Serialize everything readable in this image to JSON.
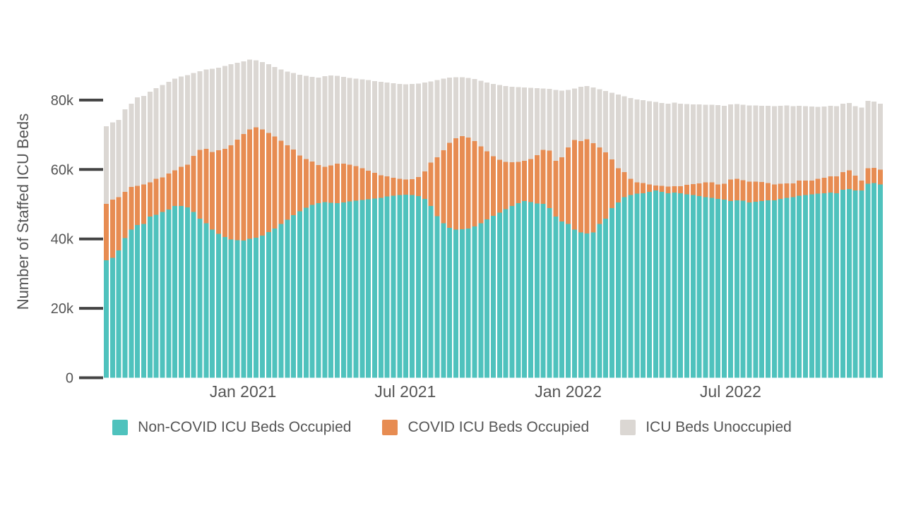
{
  "chart_data": {
    "type": "bar",
    "stacked": true,
    "title": "",
    "xlabel": "",
    "ylabel": "Number of Staffed ICU Beds",
    "unit": "thousands of staffed ICU beds",
    "bar_count": 125,
    "x_frequency": "weekly",
    "grid": false,
    "legend_position": "bottom",
    "ylim_k": [
      0,
      92
    ],
    "y_ticks": [
      {
        "value": 0,
        "label": "0"
      },
      {
        "value": 20,
        "label": "20k"
      },
      {
        "value": 40,
        "label": "40k"
      },
      {
        "value": 60,
        "label": "60k"
      },
      {
        "value": 80,
        "label": "80k"
      }
    ],
    "x_ticks": [
      {
        "label": "Jan 2021",
        "bar_index": 21.9
      },
      {
        "label": "Jul 2021",
        "bar_index": 47.9
      },
      {
        "label": "Jan 2022",
        "bar_index": 74.0
      },
      {
        "label": "Jul 2022",
        "bar_index": 100.0
      }
    ],
    "axis_colors": {
      "tick_dash": "#444444",
      "tick_label": "#555555",
      "axis_title": "#555555"
    },
    "series": [
      {
        "name": "Non-COVID ICU Beds Occupied",
        "color": "#4FC2BD",
        "values_k": [
          33.8,
          34.6,
          36.7,
          40.2,
          42.7,
          44.0,
          44.3,
          46.4,
          47.0,
          47.8,
          48.5,
          49.5,
          49.5,
          49.1,
          47.8,
          45.8,
          44.5,
          42.7,
          41.5,
          40.5,
          39.8,
          39.6,
          39.5,
          40.0,
          40.3,
          41.0,
          42.0,
          43.0,
          44.3,
          45.5,
          46.8,
          48.0,
          49.0,
          49.8,
          50.3,
          50.6,
          50.4,
          50.3,
          50.5,
          50.8,
          51.0,
          51.2,
          51.4,
          51.6,
          51.8,
          52.2,
          52.4,
          52.6,
          52.7,
          52.6,
          52.3,
          51.5,
          49.5,
          46.5,
          44.5,
          43.2,
          42.7,
          42.8,
          43.0,
          43.6,
          44.5,
          45.6,
          46.6,
          47.6,
          48.6,
          49.5,
          50.3,
          50.9,
          50.6,
          50.2,
          50.1,
          48.9,
          46.4,
          45.0,
          44.3,
          42.7,
          41.9,
          41.6,
          41.9,
          44.3,
          45.8,
          48.9,
          50.5,
          52.0,
          52.6,
          53.0,
          53.2,
          53.6,
          54.0,
          53.6,
          53.2,
          53.4,
          53.2,
          52.8,
          52.6,
          52.3,
          52.0,
          51.8,
          51.5,
          51.3,
          50.9,
          51.1,
          51.0,
          50.5,
          50.7,
          50.9,
          51.1,
          51.1,
          51.5,
          51.8,
          52.0,
          52.4,
          52.6,
          52.8,
          53.0,
          53.2,
          53.4,
          53.2,
          54.2,
          54.4,
          54.0,
          54.0,
          55.9,
          56.1,
          55.7
        ]
      },
      {
        "name": "COVID ICU Beds Occupied",
        "color": "#E78C52",
        "values_k": [
          16.3,
          16.7,
          15.3,
          13.4,
          12.3,
          11.3,
          11.4,
          9.9,
          10.3,
          9.9,
          10.3,
          10.3,
          11.3,
          12.3,
          16.1,
          19.8,
          21.5,
          22.3,
          24.0,
          25.5,
          27.2,
          29.0,
          30.7,
          31.5,
          31.9,
          30.5,
          28.5,
          26.5,
          24.0,
          21.5,
          19.0,
          16.0,
          14.0,
          12.5,
          11.0,
          10.2,
          10.8,
          11.4,
          11.2,
          10.6,
          10.0,
          9.2,
          8.3,
          7.4,
          6.5,
          5.8,
          5.2,
          4.7,
          4.4,
          4.6,
          5.5,
          8.0,
          12.5,
          17.0,
          21.0,
          24.5,
          26.3,
          26.8,
          26.2,
          24.6,
          22.2,
          19.6,
          17.2,
          15.2,
          13.6,
          12.6,
          11.9,
          11.6,
          12.4,
          13.9,
          15.5,
          16.5,
          16.1,
          18.5,
          22.1,
          25.8,
          26.3,
          27.1,
          25.7,
          22.1,
          19.1,
          14.0,
          9.9,
          7.2,
          4.7,
          3.3,
          2.9,
          2.1,
          1.4,
          1.7,
          1.9,
          1.8,
          2.0,
          2.8,
          3.2,
          3.7,
          4.3,
          4.5,
          4.2,
          4.6,
          6.2,
          6.2,
          5.9,
          6.0,
          5.8,
          5.5,
          5.0,
          4.6,
          4.4,
          4.2,
          4.0,
          4.4,
          4.2,
          4.0,
          4.3,
          4.4,
          4.6,
          4.8,
          5.0,
          5.4,
          4.2,
          2.8,
          4.5,
          4.4,
          4.3
        ]
      },
      {
        "name": "ICU Beds Unoccupied",
        "color": "#DBD7D3",
        "values_k": [
          22.4,
          22.3,
          22.3,
          23.7,
          24.0,
          25.5,
          25.5,
          26.1,
          26.1,
          26.7,
          26.5,
          26.4,
          26.0,
          25.8,
          23.9,
          22.7,
          22.8,
          24.0,
          23.8,
          23.8,
          23.3,
          22.2,
          21.0,
          20.2,
          19.3,
          19.5,
          19.8,
          20.0,
          20.5,
          21.2,
          22.0,
          23.3,
          24.0,
          24.4,
          25.2,
          26.1,
          25.9,
          25.3,
          25.0,
          25.0,
          25.2,
          25.6,
          26.1,
          26.5,
          27.0,
          27.1,
          27.3,
          27.4,
          27.5,
          27.5,
          27.0,
          25.6,
          23.4,
          22.3,
          20.7,
          18.8,
          17.6,
          17.0,
          17.2,
          17.9,
          18.9,
          19.9,
          20.9,
          21.5,
          21.8,
          21.7,
          21.5,
          21.1,
          20.5,
          19.3,
          17.7,
          17.8,
          20.4,
          19.2,
          16.5,
          14.8,
          15.6,
          15.3,
          16.0,
          16.7,
          17.7,
          19.2,
          21.2,
          21.9,
          23.3,
          23.9,
          23.9,
          24.0,
          24.1,
          23.9,
          23.9,
          24.1,
          23.8,
          23.3,
          23.0,
          22.8,
          22.4,
          22.4,
          22.9,
          22.5,
          21.7,
          21.6,
          21.8,
          22.0,
          22.0,
          22.0,
          22.3,
          22.6,
          22.5,
          22.5,
          22.3,
          21.6,
          21.5,
          21.4,
          20.7,
          20.6,
          20.4,
          20.3,
          19.8,
          19.4,
          20.1,
          21.0,
          19.4,
          19.1,
          19.0
        ]
      }
    ]
  }
}
